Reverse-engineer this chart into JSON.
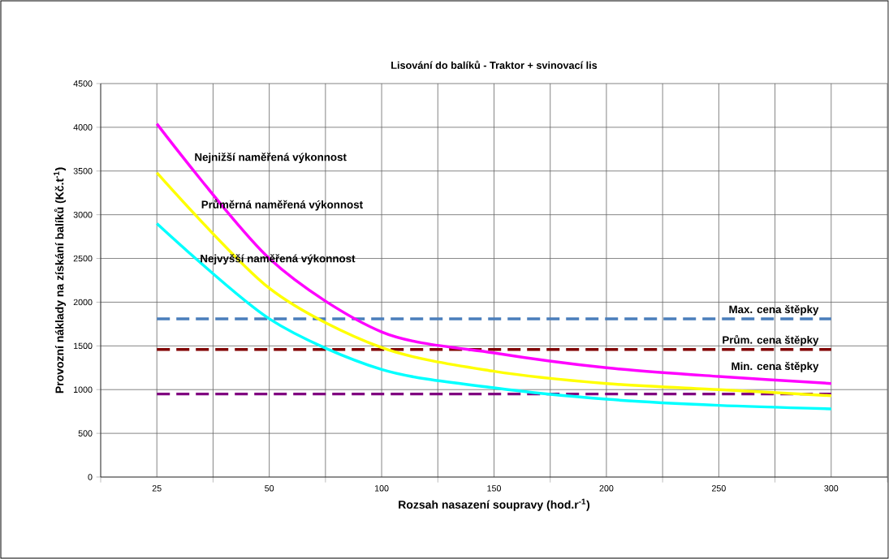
{
  "chart_data": {
    "type": "line",
    "title": "Lisování do balíků - Traktor + svinovací lis",
    "xlabel": "Rozsah nasazení soupravy (hod.r$^{-1}$)",
    "ylabel": "Provozní náklady na získání balíků (Kč.t$^{-1}$)",
    "categories": [
      "25",
      "50",
      "100",
      "150",
      "200",
      "250",
      "300"
    ],
    "series": [
      {
        "name": "Nejnižší naměřená výkonnost",
        "color": "#ff00ff",
        "values": [
          4040,
          2500,
          1660,
          1420,
          1250,
          1150,
          1070
        ]
      },
      {
        "name": "Průměrná naměřená výkonnost",
        "color": "#ffff00",
        "values": [
          3480,
          2160,
          1480,
          1210,
          1070,
          1000,
          930
        ]
      },
      {
        "name": "Nejvyšší naměřená výkonnost",
        "color": "#00ffff",
        "values": [
          2900,
          1810,
          1230,
          1020,
          890,
          820,
          780
        ]
      }
    ],
    "ref_lines": [
      {
        "axis": "y",
        "value": 1810,
        "label": "Max. cena štěpky",
        "color": "#4a7ebb",
        "line_style": "dashed"
      },
      {
        "axis": "y",
        "value": 1460,
        "label": "Prům. cena štěpky",
        "color": "#800000",
        "line_style": "dashed"
      },
      {
        "axis": "y",
        "value": 950,
        "label": "Min. cena štěpky",
        "color": "#800080",
        "line_style": "dashed"
      }
    ],
    "ylim": [
      0,
      4500
    ],
    "yticks": [
      0,
      500,
      1000,
      1500,
      2000,
      2500,
      3000,
      3500,
      4000,
      4500
    ],
    "grid": true,
    "marker": "none",
    "line_style": "solid"
  }
}
